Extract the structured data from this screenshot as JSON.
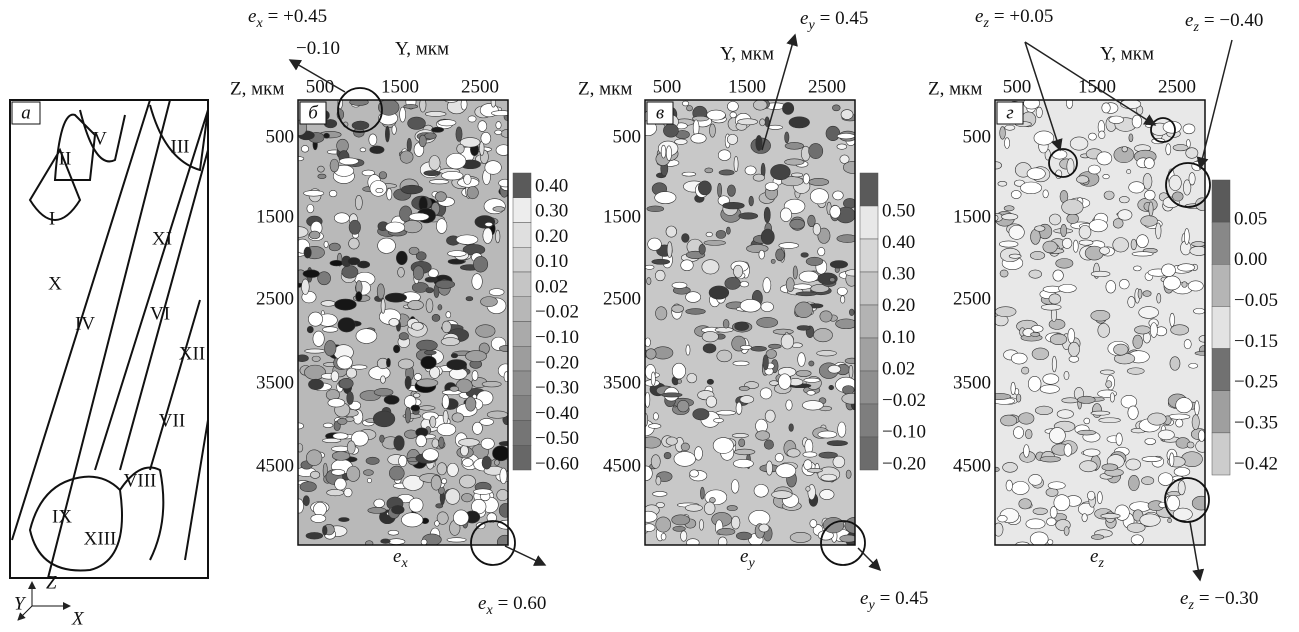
{
  "figure": {
    "panel_a": {
      "label": "а",
      "grains": [
        "II",
        "V",
        "III",
        "I",
        "XI",
        "X",
        "IV",
        "VI",
        "XII",
        "VII",
        "VIII",
        "IX",
        "XIII"
      ]
    },
    "axes_icon": {
      "z": "Z",
      "y": "Y",
      "x": "X"
    },
    "panels": [
      {
        "label": "б",
        "z_title": "Z, мкм",
        "y_title": "Y, мкм",
        "x_ticks": [
          "500",
          "1500",
          "2500"
        ],
        "z_ticks": [
          "500",
          "1500",
          "2500",
          "3500",
          "4500"
        ],
        "colorbar": [
          "0.40",
          "0.30",
          "0.20",
          "0.10",
          "0.02",
          "−0.02",
          "−0.10",
          "−0.20",
          "−0.30",
          "−0.40",
          "−0.50",
          "−0.60"
        ],
        "bottom": {
          "var": "e",
          "sub": "x"
        },
        "annotations": [
          {
            "var": "e",
            "sub": "x",
            "rest": "= +0.45"
          },
          {
            "rest": "−0.10"
          },
          {
            "var": "e",
            "sub": "x",
            "rest": "= 0.60"
          }
        ]
      },
      {
        "label": "в",
        "z_title": "Z, мкм",
        "y_title": "Y, мкм",
        "x_ticks": [
          "500",
          "1500",
          "2500"
        ],
        "z_ticks": [
          "500",
          "1500",
          "2500",
          "3500",
          "4500"
        ],
        "colorbar": [
          "0.50",
          "0.40",
          "0.30",
          "0.20",
          "0.10",
          "0.02",
          "−0.02",
          "−0.10",
          "−0.20"
        ],
        "bottom": {
          "var": "e",
          "sub": "y"
        },
        "annotations": [
          {
            "var": "e",
            "sub": "y",
            "rest": "= 0.45"
          },
          {
            "var": "e",
            "sub": "y",
            "rest": "= 0.45"
          }
        ]
      },
      {
        "label": "г",
        "z_title": "Z, мкм",
        "y_title": "Y, мкм",
        "x_ticks": [
          "500",
          "1500",
          "2500"
        ],
        "z_ticks": [
          "500",
          "1500",
          "2500",
          "3500",
          "4500"
        ],
        "colorbar": [
          "0.05",
          "0.00",
          "−0.05",
          "−0.15",
          "−0.25",
          "−0.35",
          "−0.42"
        ],
        "bottom": {
          "var": "e",
          "sub": "z"
        },
        "annotations": [
          {
            "var": "e",
            "sub": "z",
            "rest": "= +0.05"
          },
          {
            "var": "e",
            "sub": "z",
            "rest": "= −0.40"
          },
          {
            "var": "e",
            "sub": "z",
            "rest": "= −0.30"
          }
        ]
      }
    ]
  }
}
